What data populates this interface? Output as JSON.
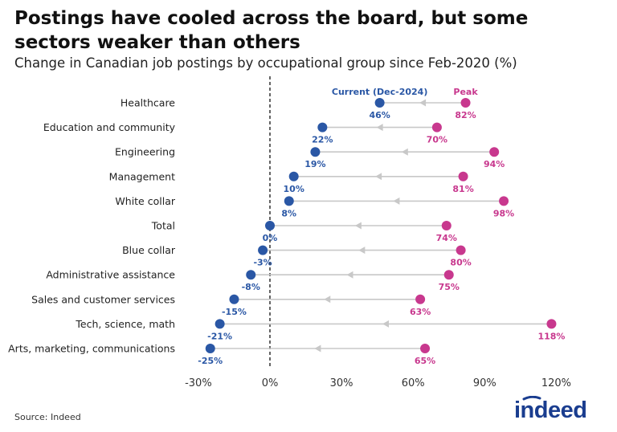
{
  "title": "Postings have cooled across the board, but some sectors weaker than others",
  "subtitle": "Change in Canadian job postings by occupational group since Feb-2020 (%)",
  "source": "Source: Indeed",
  "brand": {
    "name": "indeed",
    "color": "#1a3d8f"
  },
  "colors": {
    "current": "#2a57a5",
    "peak": "#c8388e",
    "connector": "#c8c8c8",
    "zero_line": "#222222"
  },
  "chart_data": {
    "type": "dumbbell",
    "title": "Postings have cooled across the board, but some sectors weaker than others",
    "xlabel": "",
    "ylabel": "",
    "xlim": [
      -35,
      130
    ],
    "x_ticks": [
      -30,
      0,
      30,
      60,
      90,
      120
    ],
    "x_tick_labels": [
      "-30%",
      "0%",
      "30%",
      "60%",
      "90%",
      "120%"
    ],
    "zero_reference_line": 0,
    "legend": {
      "current": "Current (Dec-2024)",
      "peak": "Peak"
    },
    "categories": [
      "Healthcare",
      "Education and community",
      "Engineering",
      "Management",
      "White collar",
      "Total",
      "Blue collar",
      "Administrative assistance",
      "Sales and customer services",
      "Tech, science, math",
      "Arts, marketing, communications"
    ],
    "series": [
      {
        "name": "Current (Dec-2024)",
        "values": [
          46,
          22,
          19,
          10,
          8,
          0,
          -3,
          -8,
          -15,
          -21,
          -25
        ],
        "labels": [
          "46%",
          "22%",
          "19%",
          "10%",
          "8%",
          "0%",
          "-3%",
          "-8%",
          "-15%",
          "-21%",
          "-25%"
        ]
      },
      {
        "name": "Peak",
        "values": [
          82,
          70,
          94,
          81,
          98,
          74,
          80,
          75,
          63,
          118,
          65
        ],
        "labels": [
          "82%",
          "70%",
          "94%",
          "81%",
          "98%",
          "74%",
          "80%",
          "75%",
          "63%",
          "118%",
          "65%"
        ]
      }
    ]
  }
}
